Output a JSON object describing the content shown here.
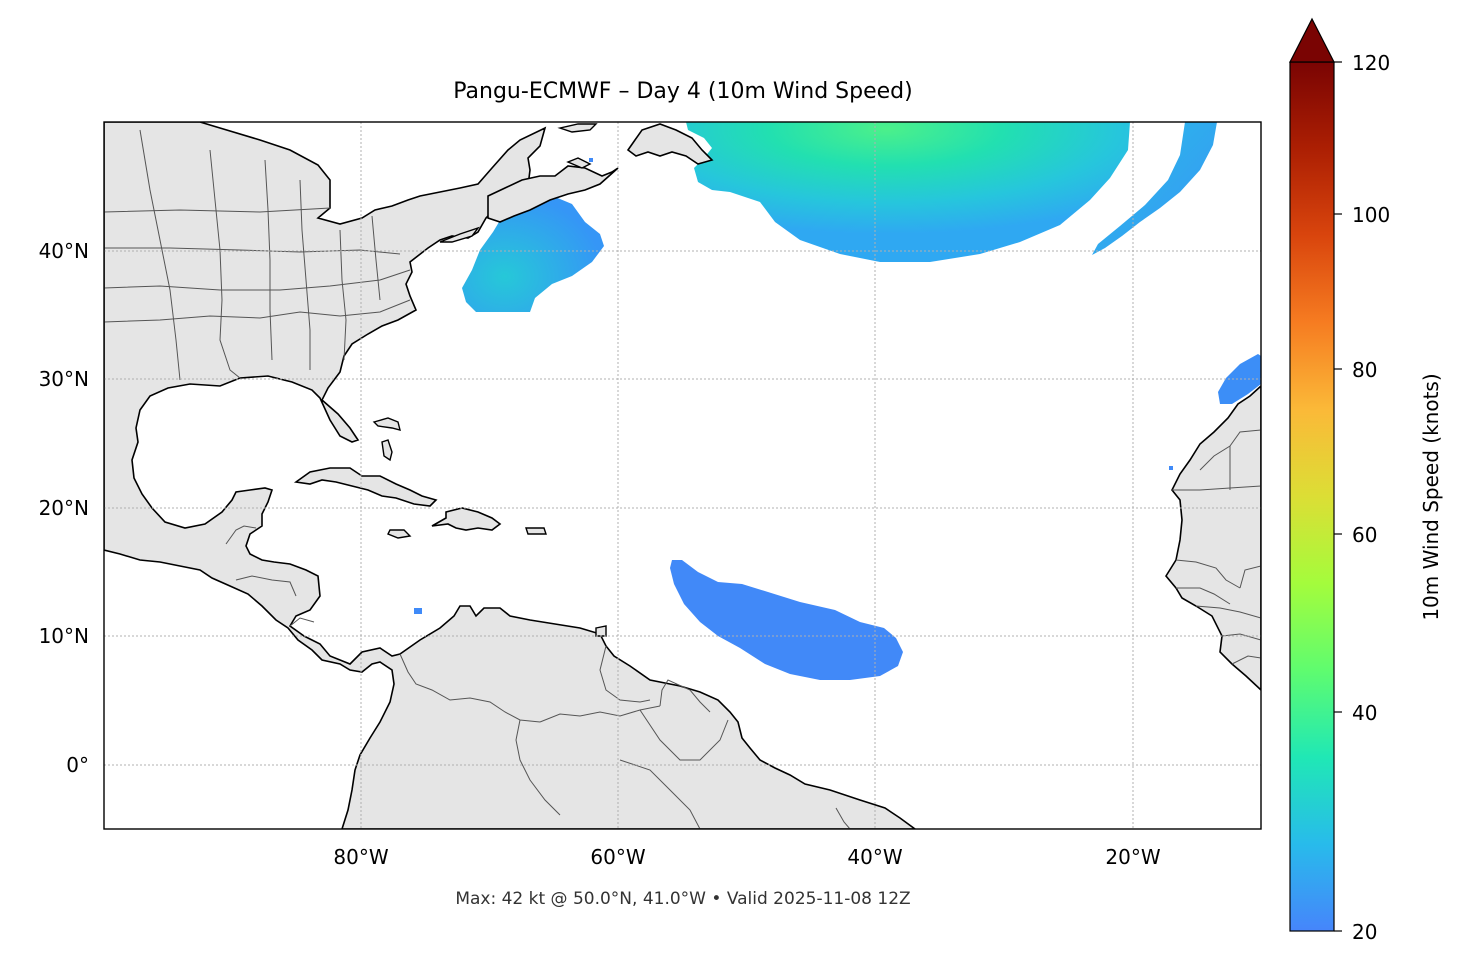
{
  "title": "Pangu-ECMWF – Day 4 (10m Wind Speed)",
  "footer": "Max: 42 kt @ 50.0°N, 41.0°W • Valid 2025-11-08 12Z",
  "axes": {
    "lat_ticks": [
      "40°N",
      "30°N",
      "20°N",
      "10°N",
      "0°"
    ],
    "lon_ticks": [
      "80°W",
      "60°W",
      "40°W",
      "20°W"
    ],
    "lon_range": [
      -100,
      -10
    ],
    "lat_range": [
      -5,
      50
    ],
    "gridlines": true
  },
  "colorbar": {
    "label": "10m Wind Speed (knots)",
    "ticks": [
      "20",
      "40",
      "60",
      "80",
      "100",
      "120"
    ],
    "range": [
      20,
      120
    ],
    "extend": "max",
    "colormap": "turbo"
  },
  "wind_regions": [
    {
      "name": "Northeast US offshore",
      "approx_speed_kt": 30
    },
    {
      "name": "North Atlantic low",
      "approx_speed_kt": 42
    },
    {
      "name": "North Atlantic band",
      "approx_speed_kt": 28
    },
    {
      "name": "Tropical Atlantic",
      "approx_speed_kt": 22
    },
    {
      "name": "Canary Islands",
      "approx_speed_kt": 22
    }
  ],
  "colors": {
    "land": "#e5e5e5",
    "coastline": "#000000",
    "borders": "#555555",
    "grid": "#b0b0b0"
  }
}
